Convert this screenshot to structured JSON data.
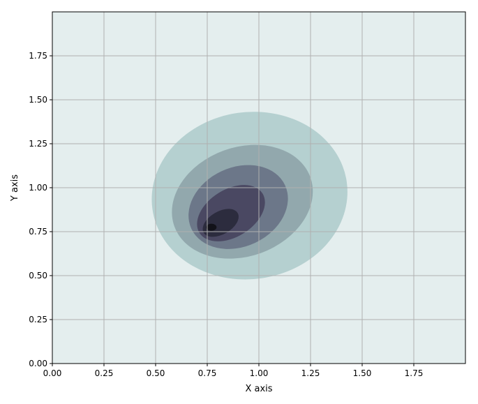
{
  "chart_data": {
    "type": "contour",
    "xlabel": "X axis",
    "ylabel": "Y axis",
    "xlim": [
      0,
      2
    ],
    "ylim": [
      0,
      2
    ],
    "xticks": [
      0.0,
      0.25,
      0.5,
      0.75,
      1.0,
      1.25,
      1.5,
      1.75
    ],
    "yticks": [
      0.0,
      0.25,
      0.5,
      0.75,
      1.0,
      1.25,
      1.5,
      1.75
    ],
    "xtick_labels": [
      "0.00",
      "0.25",
      "0.50",
      "0.75",
      "1.00",
      "1.25",
      "1.50",
      "1.75"
    ],
    "ytick_labels": [
      "0.00",
      "0.25",
      "0.50",
      "0.75",
      "1.00",
      "1.25",
      "1.50",
      "1.75"
    ],
    "grid": true,
    "colormap": "bone_r",
    "background_color": "#e4eeee",
    "levels": [
      {
        "level": 1,
        "color": "#b5d0d0",
        "cx": 0.955,
        "cy": 0.955,
        "rx": 0.475,
        "ry": 0.475,
        "rotation": -8
      },
      {
        "level": 2,
        "color": "#92a8ad",
        "cx": 0.92,
        "cy": 0.92,
        "rx": 0.35,
        "ry": 0.31,
        "rotation": -20
      },
      {
        "level": 3,
        "color": "#6c7789",
        "cx": 0.9,
        "cy": 0.89,
        "rx": 0.25,
        "ry": 0.225,
        "rotation": -25
      },
      {
        "level": 4,
        "color": "#4a4862",
        "cx": 0.865,
        "cy": 0.855,
        "rx": 0.18,
        "ry": 0.135,
        "rotation": -32
      },
      {
        "level": 5,
        "color": "#2c2c3e",
        "cx": 0.815,
        "cy": 0.8,
        "rx": 0.095,
        "ry": 0.065,
        "rotation": -30
      },
      {
        "level": 6,
        "color": "#121219",
        "cx": 0.77,
        "cy": 0.775,
        "rx": 0.025,
        "ry": 0.02,
        "rotation": 0
      }
    ]
  }
}
